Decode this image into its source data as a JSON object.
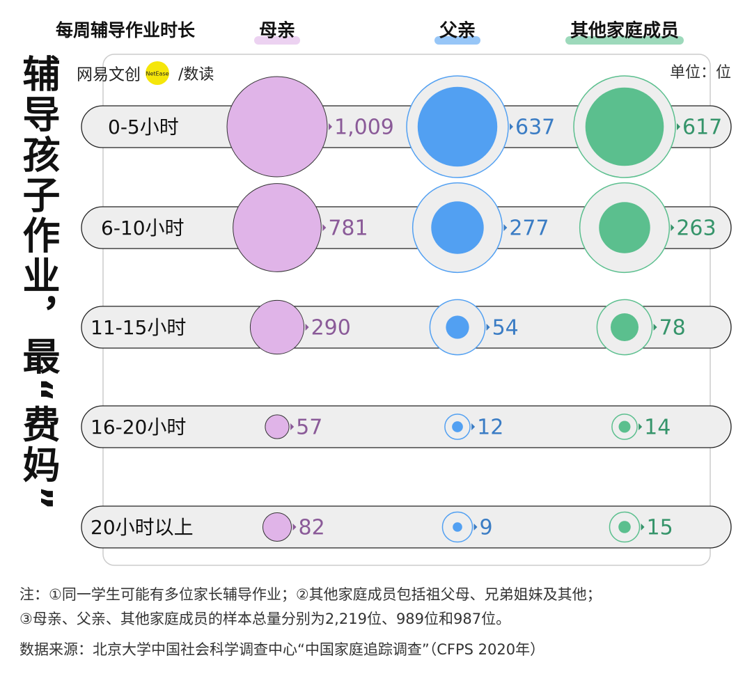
{
  "chart_data": {
    "type": "bubble",
    "title": "辅导孩子作业，最“费妈”",
    "legend_title": "每周辅导作业时长",
    "unit": "单位：位",
    "brand": "网易文创",
    "brand_badge": "NetEase",
    "brand_section": "/数读",
    "categories": [
      "0-5小时",
      "6-10小时",
      "11-15小时",
      "16-20小时",
      "20小时以上"
    ],
    "series": [
      {
        "name": "母亲",
        "color": "#e0b4e8",
        "label_color": "#8a5a98",
        "values": [
          1009,
          781,
          290,
          57,
          82
        ],
        "value_labels": [
          "1,009",
          "781",
          "290",
          "57",
          "82"
        ]
      },
      {
        "name": "父亲",
        "color": "#52a0f2",
        "label_color": "#3a7cc4",
        "values": [
          637,
          277,
          54,
          12,
          9
        ]
      },
      {
        "name": "其他家庭成员",
        "color": "#5bbf8e",
        "label_color": "#35946a",
        "values": [
          617,
          263,
          78,
          14,
          15
        ]
      }
    ],
    "notes": [
      "注：①同一学生可能有多位家长辅导作业；②其他家庭成员包括祖父母、兄弟姐妹及其他；",
      "③母亲、父亲、其他家庭成员的样本总量分别为2,219位、989位和987位。"
    ],
    "source": "数据来源：北京大学中国社会科学调查中心“中国家庭追踪调查”（CFPS 2020年）"
  }
}
